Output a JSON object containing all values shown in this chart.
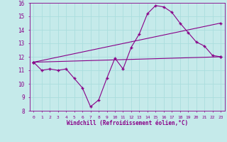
{
  "xlabel": "Windchill (Refroidissement éolien,°C)",
  "background_color": "#c5eaea",
  "line_color": "#880088",
  "grid_color": "#aadddd",
  "text_color": "#880088",
  "xlim": [
    -0.5,
    23.5
  ],
  "ylim": [
    8,
    16
  ],
  "xticks": [
    0,
    1,
    2,
    3,
    4,
    5,
    6,
    7,
    8,
    9,
    10,
    11,
    12,
    13,
    14,
    15,
    16,
    17,
    18,
    19,
    20,
    21,
    22,
    23
  ],
  "yticks": [
    8,
    9,
    10,
    11,
    12,
    13,
    14,
    15,
    16
  ],
  "line1_x": [
    0,
    1,
    2,
    3,
    4,
    5,
    6,
    7,
    8,
    9,
    10,
    11,
    12,
    13,
    14,
    15,
    16,
    17,
    18,
    19,
    20,
    21,
    22,
    23
  ],
  "line1_y": [
    11.6,
    11.0,
    11.1,
    11.0,
    11.1,
    10.4,
    9.7,
    8.3,
    8.8,
    10.4,
    11.9,
    11.1,
    12.7,
    13.7,
    15.2,
    15.8,
    15.7,
    15.3,
    14.5,
    13.8,
    13.1,
    12.8,
    12.1,
    12.0
  ],
  "line2_x": [
    0,
    23
  ],
  "line2_y": [
    11.6,
    12.0
  ],
  "line3_x": [
    0,
    23
  ],
  "line3_y": [
    11.6,
    14.5
  ]
}
